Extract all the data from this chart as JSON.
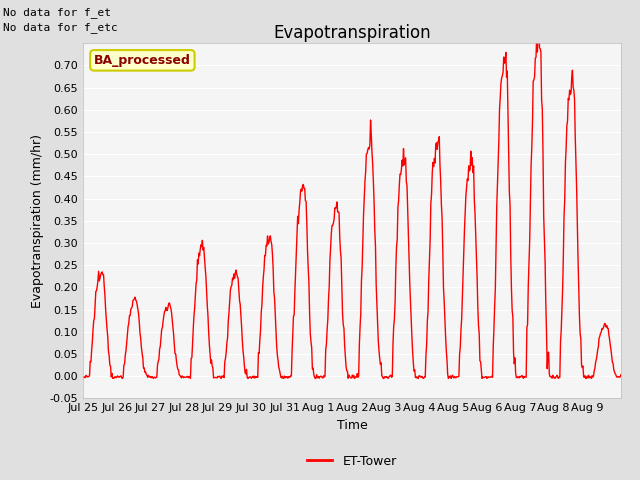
{
  "title": "Evapotranspiration",
  "ylabel": "Evapotranspiration (mm/hr)",
  "xlabel": "Time",
  "ylim": [
    -0.05,
    0.75
  ],
  "yticks": [
    -0.05,
    0.0,
    0.05,
    0.1,
    0.15,
    0.2,
    0.25,
    0.3,
    0.35,
    0.4,
    0.45,
    0.5,
    0.55,
    0.6,
    0.65,
    0.7
  ],
  "ytick_labels": [
    "-0.05",
    "0.00",
    "0.05",
    "0.10",
    "0.15",
    "0.20",
    "0.25",
    "0.30",
    "0.35",
    "0.40",
    "0.45",
    "0.50",
    "0.55",
    "0.60",
    "0.65",
    "0.70"
  ],
  "xtick_labels": [
    "Jul 25",
    "Jul 26",
    "Jul 27",
    "Jul 28",
    "Jul 29",
    "Jul 30",
    "Jul 31",
    "Aug 1",
    "Aug 2",
    "Aug 3",
    "Aug 4",
    "Aug 5",
    "Aug 6",
    "Aug 7",
    "Aug 8",
    "Aug 9"
  ],
  "line_color": "#ff0000",
  "line_width": 1.0,
  "fig_bg_color": "#e0e0e0",
  "plot_bg_color": "#f5f5f5",
  "grid_color": "#ffffff",
  "annotation_text1": "No data for f_et",
  "annotation_text2": "No data for f_etc",
  "legend_label": "ET-Tower",
  "box_label": "BA_processed",
  "box_facecolor": "#ffffcc",
  "box_edgecolor": "#cccc00",
  "title_fontsize": 12,
  "label_fontsize": 9,
  "tick_fontsize": 8,
  "annot_fontsize": 8,
  "day_peaks": [
    0.2,
    0.15,
    0.14,
    0.25,
    0.2,
    0.27,
    0.37,
    0.33,
    0.46,
    0.43,
    0.46,
    0.42,
    0.62,
    0.67,
    0.58,
    0.1
  ],
  "n_days": 16,
  "n_per_day": 48
}
